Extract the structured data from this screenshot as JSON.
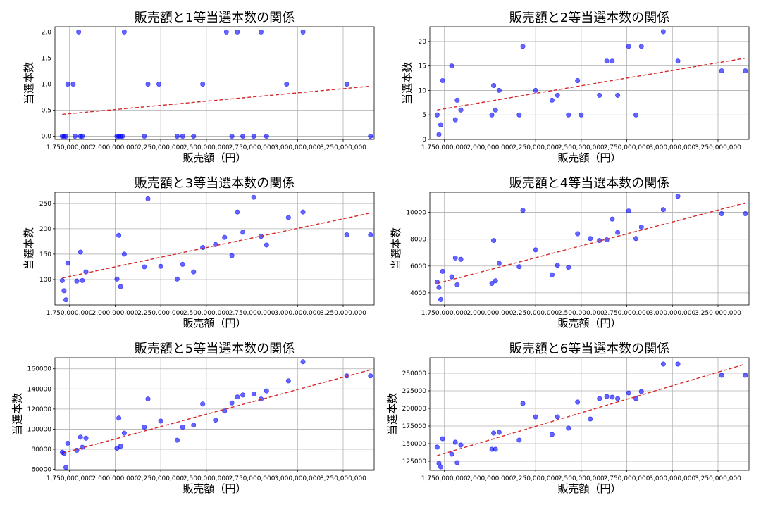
{
  "colors": {
    "point": "#0000ff",
    "trend": "#d62728",
    "grid": "#b0b0b0",
    "axis": "#000000"
  },
  "chart_data": [
    {
      "type": "scatter",
      "title": "販売額と1等当選本数の関係",
      "xlabel": "販売額（円）",
      "ylabel": "当選本数",
      "grid": true,
      "trendline": {
        "style": "dashed",
        "x": [
          1710000000,
          3400000000
        ],
        "y": [
          0.42,
          0.96
        ]
      },
      "xlim": [
        1670000000,
        3420000000
      ],
      "ylim": [
        -0.06,
        2.1
      ],
      "xticks": [
        1750000000,
        2000000000,
        2250000000,
        2500000000,
        2750000000,
        3000000000,
        3250000000
      ],
      "xtick_labels": [
        "1,750,000,000",
        "2,000,000,000",
        "2,250,000,000",
        "2,500,000,000",
        "2,750,000,000",
        "3,000,000,000",
        "3,250,000,000"
      ],
      "yticks": [
        0,
        0.5,
        1,
        1.5,
        2
      ],
      "ytick_labels": [
        "0.0",
        "0.5",
        "1.0",
        "1.5",
        "2.0"
      ],
      "x": [
        1710000000,
        1720000000,
        1730000000,
        1740000000,
        1770000000,
        1780000000,
        1800000000,
        1820000000,
        1810000000,
        2010000000,
        2020000000,
        2030000000,
        2040000000,
        2050000000,
        2160000000,
        2180000000,
        2240000000,
        2340000000,
        2370000000,
        2430000000,
        2480000000,
        2610000000,
        2640000000,
        2670000000,
        2700000000,
        2760000000,
        2800000000,
        2830000000,
        2940000000,
        3030000000,
        3270000000,
        3400000000
      ],
      "y": [
        0,
        0,
        0,
        1,
        1,
        0,
        2,
        0,
        0,
        0,
        0,
        0,
        0,
        2,
        0,
        1,
        1,
        0,
        0,
        0,
        1,
        2,
        0,
        2,
        0,
        0,
        2,
        0,
        1,
        2,
        1,
        0
      ]
    },
    {
      "type": "scatter",
      "title": "販売額と2等当選本数の関係",
      "xlabel": "販売額（円）",
      "ylabel": "当選本数",
      "grid": true,
      "trendline": {
        "style": "dashed",
        "x": [
          1710000000,
          3400000000
        ],
        "y": [
          6.0,
          16.6
        ]
      },
      "xlim": [
        1670000000,
        3420000000
      ],
      "ylim": [
        0,
        23
      ],
      "xticks": [
        1750000000,
        2000000000,
        2250000000,
        2500000000,
        2750000000,
        3000000000,
        3250000000
      ],
      "xtick_labels": [
        "1,750,000,000",
        "2,000,000,000",
        "2,250,000,000",
        "2,500,000,000",
        "2,750,000,000",
        "3,000,000,000",
        "3,250,000,000"
      ],
      "yticks": [
        0,
        5,
        10,
        15,
        20
      ],
      "ytick_labels": [
        "0",
        "5",
        "10",
        "15",
        "20"
      ],
      "x": [
        1710000000,
        1720000000,
        1730000000,
        1740000000,
        1790000000,
        1810000000,
        1820000000,
        1840000000,
        2010000000,
        2020000000,
        2030000000,
        2050000000,
        2160000000,
        2180000000,
        2250000000,
        2340000000,
        2370000000,
        2430000000,
        2480000000,
        2500000000,
        2600000000,
        2640000000,
        2670000000,
        2700000000,
        2760000000,
        2800000000,
        2830000000,
        2950000000,
        3030000000,
        3270000000,
        3400000000
      ],
      "y": [
        5,
        1,
        3,
        12,
        15,
        4,
        8,
        6,
        5,
        11,
        6,
        10,
        5,
        19,
        10,
        8,
        9,
        5,
        12,
        5,
        9,
        16,
        16,
        9,
        19,
        5,
        19,
        22,
        16,
        14,
        14
      ]
    },
    {
      "type": "scatter",
      "title": "販売額と3等当選本数の関係",
      "xlabel": "販売額（円）",
      "ylabel": "当選本数",
      "grid": true,
      "trendline": {
        "style": "dashed",
        "x": [
          1710000000,
          3400000000
        ],
        "y": [
          103,
          231
        ]
      },
      "xlim": [
        1670000000,
        3420000000
      ],
      "ylim": [
        50,
        272
      ],
      "xticks": [
        1750000000,
        2000000000,
        2250000000,
        2500000000,
        2750000000,
        3000000000,
        3250000000
      ],
      "xtick_labels": [
        "1,750,000,000",
        "2,000,000,000",
        "2,250,000,000",
        "2,500,000,000",
        "2,750,000,000",
        "3,000,000,000",
        "3,250,000,000"
      ],
      "yticks": [
        100,
        150,
        200,
        250
      ],
      "ytick_labels": [
        "100",
        "150",
        "200",
        "250"
      ],
      "x": [
        1710000000,
        1720000000,
        1730000000,
        1740000000,
        1790000000,
        1810000000,
        1820000000,
        1840000000,
        2010000000,
        2020000000,
        2030000000,
        2050000000,
        2160000000,
        2180000000,
        2250000000,
        2340000000,
        2370000000,
        2430000000,
        2480000000,
        2550000000,
        2600000000,
        2640000000,
        2670000000,
        2700000000,
        2760000000,
        2800000000,
        2830000000,
        2950000000,
        3030000000,
        3270000000,
        3400000000
      ],
      "y": [
        98,
        78,
        60,
        132,
        97,
        154,
        98,
        115,
        101,
        187,
        86,
        150,
        125,
        259,
        126,
        101,
        130,
        115,
        163,
        169,
        183,
        147,
        233,
        193,
        262,
        185,
        168,
        222,
        233,
        188,
        188
      ]
    },
    {
      "type": "scatter",
      "title": "販売額と4等当選本数の関係",
      "xlabel": "販売額（円）",
      "ylabel": "当選本数",
      "grid": true,
      "trendline": {
        "style": "dashed",
        "x": [
          1710000000,
          3400000000
        ],
        "y": [
          4700,
          10700
        ]
      },
      "xlim": [
        1670000000,
        3420000000
      ],
      "ylim": [
        3100,
        11500
      ],
      "xticks": [
        1750000000,
        2000000000,
        2250000000,
        2500000000,
        2750000000,
        3000000000,
        3250000000
      ],
      "xtick_labels": [
        "1,750,000,000",
        "2,000,000,000",
        "2,250,000,000",
        "2,500,000,000",
        "2,750,000,000",
        "3,000,000,000",
        "3,250,000,000"
      ],
      "yticks": [
        4000,
        6000,
        8000,
        10000
      ],
      "ytick_labels": [
        "4000",
        "6000",
        "8000",
        "10000"
      ],
      "x": [
        1710000000,
        1720000000,
        1730000000,
        1740000000,
        1790000000,
        1810000000,
        1820000000,
        1840000000,
        2010000000,
        2020000000,
        2030000000,
        2050000000,
        2160000000,
        2180000000,
        2250000000,
        2340000000,
        2370000000,
        2430000000,
        2480000000,
        2550000000,
        2600000000,
        2640000000,
        2670000000,
        2700000000,
        2760000000,
        2800000000,
        2830000000,
        2950000000,
        3030000000,
        3270000000,
        3400000000
      ],
      "y": [
        4800,
        4400,
        3500,
        5600,
        5200,
        6600,
        4600,
        6500,
        4700,
        7900,
        4900,
        6200,
        5950,
        10150,
        7200,
        5350,
        6050,
        5900,
        8400,
        8050,
        7900,
        7950,
        9500,
        8500,
        10100,
        8050,
        8900,
        10200,
        11200,
        9900,
        9900
      ]
    },
    {
      "type": "scatter",
      "title": "販売額と5等当選本数の関係",
      "xlabel": "販売額（円）",
      "ylabel": "当選本数",
      "grid": true,
      "trendline": {
        "style": "dashed",
        "x": [
          1710000000,
          3400000000
        ],
        "y": [
          76000,
          159000
        ]
      },
      "xlim": [
        1670000000,
        3420000000
      ],
      "ylim": [
        59000,
        171000
      ],
      "xticks": [
        1750000000,
        2000000000,
        2250000000,
        2500000000,
        2750000000,
        3000000000,
        3250000000
      ],
      "xtick_labels": [
        "1,750,000,000",
        "2,000,000,000",
        "2,250,000,000",
        "2,500,000,000",
        "2,750,000,000",
        "3,000,000,000",
        "3,250,000,000"
      ],
      "yticks": [
        60000,
        80000,
        100000,
        120000,
        140000,
        160000
      ],
      "ytick_labels": [
        "60000",
        "80000",
        "100000",
        "120000",
        "140000",
        "160000"
      ],
      "x": [
        1710000000,
        1720000000,
        1730000000,
        1740000000,
        1790000000,
        1810000000,
        1820000000,
        1840000000,
        2010000000,
        2020000000,
        2030000000,
        2050000000,
        2160000000,
        2180000000,
        2250000000,
        2340000000,
        2370000000,
        2430000000,
        2480000000,
        2550000000,
        2600000000,
        2640000000,
        2670000000,
        2700000000,
        2760000000,
        2800000000,
        2830000000,
        2950000000,
        3030000000,
        3270000000,
        3400000000
      ],
      "y": [
        77000,
        76000,
        62000,
        86000,
        79000,
        92000,
        82000,
        91000,
        81000,
        111000,
        83000,
        96000,
        102000,
        130000,
        108000,
        89000,
        102000,
        104000,
        125000,
        109000,
        118000,
        126000,
        132000,
        134000,
        135000,
        130000,
        138000,
        148000,
        167000,
        153000,
        153000
      ]
    },
    {
      "type": "scatter",
      "title": "販売額と6等当選本数の関係",
      "xlabel": "販売額（円）",
      "ylabel": "当選本数",
      "grid": true,
      "trendline": {
        "style": "dashed",
        "x": [
          1710000000,
          3400000000
        ],
        "y": [
          133000,
          263000
        ]
      },
      "xlim": [
        1670000000,
        3420000000
      ],
      "ylim": [
        112000,
        272000
      ],
      "xticks": [
        1750000000,
        2000000000,
        2250000000,
        2500000000,
        2750000000,
        3000000000,
        3250000000
      ],
      "xtick_labels": [
        "1,750,000,000",
        "2,000,000,000",
        "2,250,000,000",
        "2,500,000,000",
        "2,750,000,000",
        "3,000,000,000",
        "3,250,000,000"
      ],
      "yticks": [
        125000,
        150000,
        175000,
        200000,
        225000,
        250000
      ],
      "ytick_labels": [
        "125000",
        "150000",
        "175000",
        "200000",
        "225000",
        "250000"
      ],
      "x": [
        1710000000,
        1720000000,
        1730000000,
        1740000000,
        1790000000,
        1810000000,
        1820000000,
        1840000000,
        2010000000,
        2020000000,
        2030000000,
        2050000000,
        2160000000,
        2180000000,
        2250000000,
        2340000000,
        2370000000,
        2430000000,
        2480000000,
        2550000000,
        2600000000,
        2640000000,
        2670000000,
        2700000000,
        2760000000,
        2800000000,
        2830000000,
        2950000000,
        3030000000,
        3270000000,
        3400000000
      ],
      "y": [
        145000,
        122000,
        117000,
        157000,
        135000,
        152000,
        123000,
        148000,
        142000,
        165000,
        142000,
        166000,
        155000,
        207000,
        188000,
        163000,
        188000,
        172000,
        209000,
        185000,
        214000,
        217000,
        216000,
        214000,
        222000,
        214000,
        224000,
        263000,
        263000,
        247000,
        247000
      ]
    }
  ]
}
